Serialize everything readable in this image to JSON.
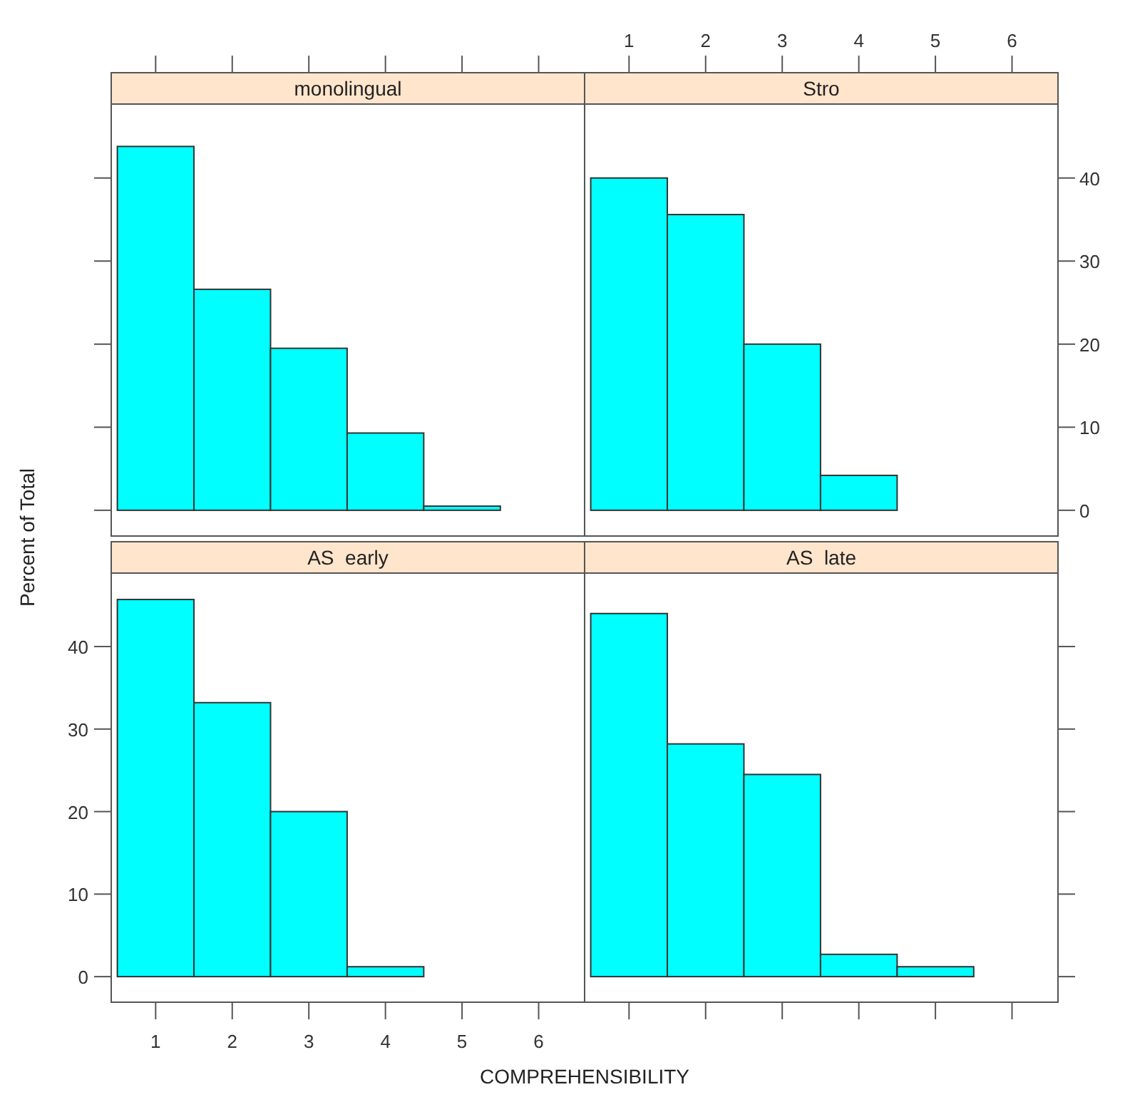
{
  "chart_data": [
    {
      "type": "histogram",
      "title": "monolingual",
      "bins": [
        0.5,
        1.5,
        2.5,
        3.5,
        4.5,
        5.5
      ],
      "values": [
        43.8,
        26.6,
        19.5,
        9.3,
        0.5
      ],
      "color": "#00ffff",
      "xlim": [
        0.42,
        6.6
      ],
      "ylim": [
        -3.1,
        48.9
      ],
      "xticks": [
        1,
        2,
        3,
        4,
        5,
        6
      ],
      "yticks": [
        0,
        10,
        20,
        30,
        40
      ],
      "tick_labels": false
    },
    {
      "type": "histogram",
      "title": "Stro",
      "bins": [
        0.5,
        1.5,
        2.5,
        3.5,
        4.5
      ],
      "values": [
        40,
        35.6,
        20,
        4.2
      ],
      "color": "#00ffff",
      "xlim": [
        0.42,
        6.6
      ],
      "ylim": [
        -3.1,
        48.9
      ],
      "xticks": [
        1,
        2,
        3,
        4,
        5,
        6
      ],
      "yticks": [
        0,
        10,
        20,
        30,
        40
      ]
    },
    {
      "type": "histogram",
      "title": "AS  early",
      "xlabel": "COMPREHENSIBILITY",
      "ylabel": "Percent of Total",
      "bins": [
        0.5,
        1.5,
        2.5,
        3.5,
        4.5
      ],
      "values": [
        45.7,
        33.2,
        20,
        1.2
      ],
      "color": "#00ffff",
      "xlim": [
        0.42,
        6.6
      ],
      "ylim": [
        -3.1,
        48.9
      ],
      "xticks": [
        1,
        2,
        3,
        4,
        5,
        6
      ],
      "yticks": [
        0,
        10,
        20,
        30,
        40
      ]
    },
    {
      "type": "histogram",
      "title": "AS  late",
      "bins": [
        0.5,
        1.5,
        2.5,
        3.5,
        4.5,
        5.5
      ],
      "values": [
        44,
        28.2,
        24.5,
        2.7,
        1.2
      ],
      "color": "#00ffff",
      "xlim": [
        0.42,
        6.6
      ],
      "ylim": [
        -3.1,
        48.9
      ],
      "xticks": [
        1,
        2,
        3,
        4,
        5,
        6
      ],
      "yticks": [
        0,
        10,
        20,
        30,
        40
      ],
      "tick_labels": false
    }
  ]
}
